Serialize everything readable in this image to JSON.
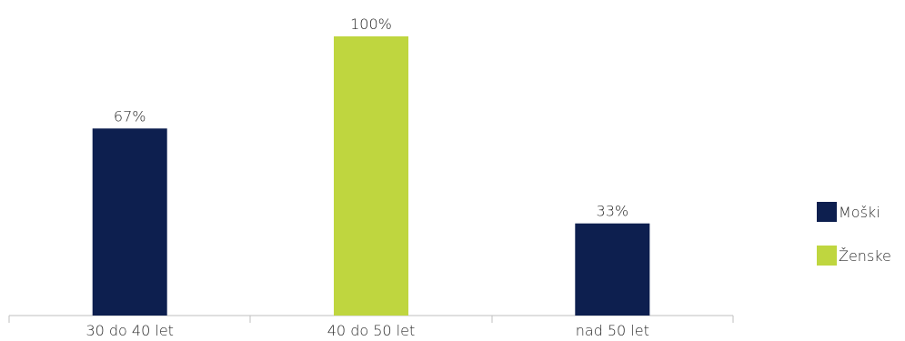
{
  "chart_data": {
    "type": "bar",
    "categories": [
      "30 do 40 let",
      "40 do 50 let",
      "nad 50 let"
    ],
    "bars": [
      {
        "category": "30 do 40 let",
        "series": "Moški",
        "value": 67,
        "label": "67%"
      },
      {
        "category": "40 do 50 let",
        "series": "Ženske",
        "value": 100,
        "label": "100%"
      },
      {
        "category": "nad 50 let",
        "series": "Moški",
        "value": 33,
        "label": "33%"
      }
    ],
    "series": [
      {
        "name": "Moški",
        "color": "#0d1f4f"
      },
      {
        "name": "Ženske",
        "color": "#bfd63f"
      }
    ],
    "ylim": [
      0,
      100
    ],
    "legend_position": "right",
    "grid": false
  },
  "legend": {
    "items": [
      "Moški",
      "Ženske"
    ]
  }
}
